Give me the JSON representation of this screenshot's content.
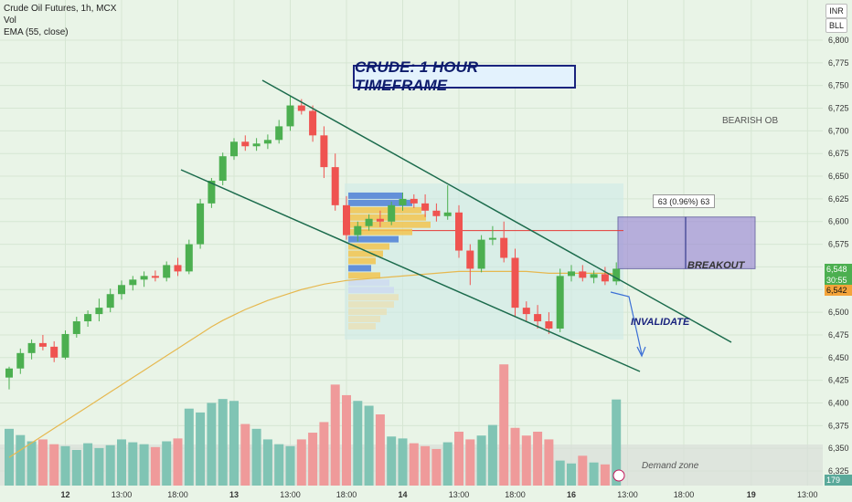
{
  "header": {
    "symbol_line": "Crude Oil Futures, 1h, MCX",
    "vol_label": "Vol",
    "ema_label": "EMA (55, close)"
  },
  "title_banner": "CRUDE: 1 HOUR TIMEFRAME",
  "currency_badges": [
    "INR",
    "BLL"
  ],
  "annotations": {
    "bearish_ob": "BEARISH OB",
    "breakout": "BREAKOUT",
    "invalidate": "INVALIDATE",
    "demand_zone": "Demand zone",
    "measure": "63 (0.96%) 63"
  },
  "price_labels": {
    "last_green": "6,548",
    "countdown": "30:55",
    "ema_value": "6,542",
    "volume_value": "179"
  },
  "colors": {
    "up": "#4caf50",
    "down": "#ef5350",
    "vol_up": "#80c4b4",
    "vol_down": "#ef9a9a",
    "ema": "#e6b84f",
    "channel": "#1b6b4c",
    "breakout_box": "#9c8ad6",
    "title_border": "#1a237e"
  },
  "chart_data": {
    "type": "candlestick",
    "title": "Crude Oil Futures, 1h, MCX",
    "ylim": [
      6320,
      6810
    ],
    "y_ticks": [
      6325,
      6350,
      6375,
      6400,
      6425,
      6450,
      6475,
      6500,
      6525,
      6550,
      6575,
      6600,
      6625,
      6650,
      6675,
      6700,
      6725,
      6750,
      6775,
      6800
    ],
    "y_tick_labels": [
      "6,325",
      "6,350",
      "6,375",
      "6,400",
      "6,425",
      "6,450",
      "6,475",
      "6,500",
      "6,525",
      "6,550",
      "6,575",
      "6,600",
      "6,625",
      "6,650",
      "6,675",
      "6,700",
      "6,725",
      "6,750",
      "6,775",
      "6,800"
    ],
    "x_tick_labels": [
      "12",
      "13:00",
      "18:00",
      "13",
      "13:00",
      "18:00",
      "14",
      "13:00",
      "18:00",
      "16",
      "13:00",
      "18:00",
      "19",
      "13:00"
    ],
    "x_tick_bar_index": [
      5,
      10,
      15,
      20,
      25,
      30,
      35,
      40,
      45,
      50,
      55,
      60,
      66,
      71
    ],
    "candles": [
      {
        "o": 6428,
        "h": 6440,
        "l": 6415,
        "c": 6438
      },
      {
        "o": 6438,
        "h": 6460,
        "l": 6432,
        "c": 6455
      },
      {
        "o": 6455,
        "h": 6470,
        "l": 6448,
        "c": 6466
      },
      {
        "o": 6466,
        "h": 6475,
        "l": 6458,
        "c": 6462
      },
      {
        "o": 6462,
        "h": 6468,
        "l": 6445,
        "c": 6450
      },
      {
        "o": 6450,
        "h": 6480,
        "l": 6448,
        "c": 6476
      },
      {
        "o": 6476,
        "h": 6495,
        "l": 6472,
        "c": 6490
      },
      {
        "o": 6490,
        "h": 6502,
        "l": 6484,
        "c": 6498
      },
      {
        "o": 6498,
        "h": 6515,
        "l": 6490,
        "c": 6505
      },
      {
        "o": 6505,
        "h": 6526,
        "l": 6500,
        "c": 6520
      },
      {
        "o": 6520,
        "h": 6535,
        "l": 6514,
        "c": 6530
      },
      {
        "o": 6530,
        "h": 6540,
        "l": 6524,
        "c": 6536
      },
      {
        "o": 6536,
        "h": 6545,
        "l": 6528,
        "c": 6540
      },
      {
        "o": 6540,
        "h": 6546,
        "l": 6534,
        "c": 6538
      },
      {
        "o": 6538,
        "h": 6556,
        "l": 6534,
        "c": 6552
      },
      {
        "o": 6552,
        "h": 6560,
        "l": 6540,
        "c": 6545
      },
      {
        "o": 6545,
        "h": 6580,
        "l": 6542,
        "c": 6575
      },
      {
        "o": 6575,
        "h": 6625,
        "l": 6570,
        "c": 6620
      },
      {
        "o": 6620,
        "h": 6648,
        "l": 6615,
        "c": 6645
      },
      {
        "o": 6645,
        "h": 6676,
        "l": 6640,
        "c": 6672
      },
      {
        "o": 6672,
        "h": 6692,
        "l": 6668,
        "c": 6688
      },
      {
        "o": 6688,
        "h": 6695,
        "l": 6678,
        "c": 6683
      },
      {
        "o": 6683,
        "h": 6692,
        "l": 6678,
        "c": 6686
      },
      {
        "o": 6686,
        "h": 6696,
        "l": 6680,
        "c": 6690
      },
      {
        "o": 6690,
        "h": 6712,
        "l": 6686,
        "c": 6705
      },
      {
        "o": 6705,
        "h": 6738,
        "l": 6700,
        "c": 6728
      },
      {
        "o": 6728,
        "h": 6735,
        "l": 6718,
        "c": 6722
      },
      {
        "o": 6722,
        "h": 6728,
        "l": 6688,
        "c": 6695
      },
      {
        "o": 6695,
        "h": 6705,
        "l": 6648,
        "c": 6660
      },
      {
        "o": 6660,
        "h": 6675,
        "l": 6612,
        "c": 6618
      },
      {
        "o": 6618,
        "h": 6628,
        "l": 6580,
        "c": 6585
      },
      {
        "o": 6585,
        "h": 6600,
        "l": 6578,
        "c": 6595
      },
      {
        "o": 6595,
        "h": 6608,
        "l": 6590,
        "c": 6603
      },
      {
        "o": 6603,
        "h": 6612,
        "l": 6594,
        "c": 6600
      },
      {
        "o": 6600,
        "h": 6622,
        "l": 6596,
        "c": 6618
      },
      {
        "o": 6618,
        "h": 6632,
        "l": 6612,
        "c": 6625
      },
      {
        "o": 6625,
        "h": 6630,
        "l": 6615,
        "c": 6620
      },
      {
        "o": 6620,
        "h": 6630,
        "l": 6605,
        "c": 6612
      },
      {
        "o": 6612,
        "h": 6620,
        "l": 6600,
        "c": 6606
      },
      {
        "o": 6606,
        "h": 6640,
        "l": 6602,
        "c": 6610
      },
      {
        "o": 6610,
        "h": 6618,
        "l": 6560,
        "c": 6568
      },
      {
        "o": 6568,
        "h": 6575,
        "l": 6530,
        "c": 6548
      },
      {
        "o": 6548,
        "h": 6585,
        "l": 6544,
        "c": 6580
      },
      {
        "o": 6580,
        "h": 6595,
        "l": 6574,
        "c": 6582
      },
      {
        "o": 6582,
        "h": 6600,
        "l": 6555,
        "c": 6560
      },
      {
        "o": 6560,
        "h": 6570,
        "l": 6495,
        "c": 6505
      },
      {
        "o": 6505,
        "h": 6512,
        "l": 6490,
        "c": 6498
      },
      {
        "o": 6498,
        "h": 6508,
        "l": 6482,
        "c": 6490
      },
      {
        "o": 6490,
        "h": 6500,
        "l": 6476,
        "c": 6482
      },
      {
        "o": 6482,
        "h": 6548,
        "l": 6478,
        "c": 6540
      },
      {
        "o": 6540,
        "h": 6552,
        "l": 6534,
        "c": 6545
      },
      {
        "o": 6545,
        "h": 6552,
        "l": 6534,
        "c": 6538
      },
      {
        "o": 6538,
        "h": 6546,
        "l": 6532,
        "c": 6542
      },
      {
        "o": 6542,
        "h": 6550,
        "l": 6530,
        "c": 6534
      },
      {
        "o": 6534,
        "h": 6555,
        "l": 6530,
        "c": 6548
      }
    ],
    "volumes": [
      118,
      105,
      92,
      96,
      86,
      82,
      74,
      88,
      78,
      84,
      96,
      90,
      86,
      80,
      92,
      98,
      160,
      152,
      172,
      180,
      176,
      128,
      118,
      96,
      86,
      82,
      96,
      110,
      132,
      210,
      188,
      176,
      166,
      148,
      102,
      98,
      88,
      82,
      76,
      90,
      112,
      96,
      104,
      126,
      252,
      120,
      104,
      112,
      96,
      52,
      46,
      62,
      48,
      44,
      179
    ],
    "ema": [
      6340,
      6348,
      6356,
      6364,
      6372,
      6380,
      6388,
      6396,
      6404,
      6412,
      6420,
      6428,
      6436,
      6444,
      6452,
      6460,
      6468,
      6476,
      6484,
      6491,
      6497,
      6503,
      6508,
      6513,
      6517,
      6521,
      6525,
      6528,
      6531,
      6533,
      6535,
      6536,
      6537,
      6538,
      6539,
      6540,
      6541,
      6542,
      6543,
      6544,
      6545,
      6545,
      6545,
      6545,
      6545,
      6545,
      6545,
      6544,
      6543,
      6543,
      6543,
      6543,
      6543,
      6543,
      6542
    ]
  }
}
